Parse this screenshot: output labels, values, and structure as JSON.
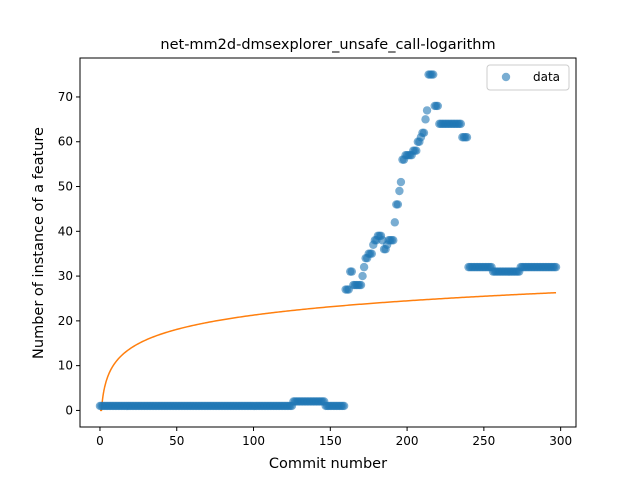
{
  "chart_data": {
    "type": "scatter",
    "title": "net-mm2d-dmsexplorer_unsafe_call-logarithm",
    "xlabel": "Commit number",
    "ylabel": "Number of instance of a feature",
    "xlim": [
      -13,
      310
    ],
    "ylim": [
      -3.7,
      78.7
    ],
    "xticks": [
      0,
      50,
      100,
      150,
      200,
      250,
      300
    ],
    "yticks": [
      0,
      10,
      20,
      30,
      40,
      50,
      60,
      70
    ],
    "grid": false,
    "legend": {
      "position": "top-right",
      "entries": [
        "data"
      ]
    },
    "colors": {
      "data": "#1f77b4",
      "fit": "#ff7f0e"
    },
    "series": [
      {
        "name": "data",
        "style": "markers",
        "segments": [
          {
            "x_start": 0,
            "x_end": 125,
            "y": 1
          },
          {
            "x_start": 126,
            "x_end": 146,
            "y": 2
          },
          {
            "x_start": 147,
            "x_end": 159,
            "y": 1
          },
          {
            "x_start": 240,
            "x_end": 255,
            "y": 32
          },
          {
            "x_start": 256,
            "x_end": 273,
            "y": 31
          },
          {
            "x_start": 274,
            "x_end": 297,
            "y": 32
          }
        ],
        "points": [
          [
            160,
            27
          ],
          [
            161,
            27
          ],
          [
            162,
            27
          ],
          [
            163,
            31
          ],
          [
            164,
            31
          ],
          [
            165,
            28
          ],
          [
            166,
            28
          ],
          [
            167,
            28
          ],
          [
            168,
            28
          ],
          [
            169,
            28
          ],
          [
            170,
            28
          ],
          [
            171,
            30
          ],
          [
            172,
            32
          ],
          [
            173,
            34
          ],
          [
            174,
            34
          ],
          [
            175,
            35
          ],
          [
            176,
            35
          ],
          [
            177,
            35
          ],
          [
            178,
            37
          ],
          [
            179,
            38
          ],
          [
            180,
            38
          ],
          [
            181,
            39
          ],
          [
            182,
            39
          ],
          [
            183,
            39
          ],
          [
            184,
            38
          ],
          [
            185,
            36
          ],
          [
            186,
            36
          ],
          [
            187,
            37
          ],
          [
            188,
            38
          ],
          [
            189,
            38
          ],
          [
            190,
            38
          ],
          [
            191,
            38
          ],
          [
            192,
            42
          ],
          [
            193,
            46
          ],
          [
            194,
            46
          ],
          [
            195,
            49
          ],
          [
            196,
            51
          ],
          [
            197,
            56
          ],
          [
            198,
            56
          ],
          [
            199,
            57
          ],
          [
            200,
            57
          ],
          [
            201,
            57
          ],
          [
            202,
            57
          ],
          [
            203,
            57
          ],
          [
            204,
            58
          ],
          [
            205,
            58
          ],
          [
            206,
            58
          ],
          [
            207,
            60
          ],
          [
            208,
            60
          ],
          [
            209,
            61
          ],
          [
            210,
            62
          ],
          [
            211,
            62
          ],
          [
            212,
            65
          ],
          [
            213,
            67
          ],
          [
            214,
            75
          ],
          [
            215,
            75
          ],
          [
            216,
            75
          ],
          [
            217,
            75
          ],
          [
            218,
            68
          ],
          [
            219,
            68
          ],
          [
            220,
            68
          ],
          [
            221,
            64
          ],
          [
            222,
            64
          ],
          [
            223,
            64
          ],
          [
            224,
            64
          ],
          [
            225,
            64
          ],
          [
            226,
            64
          ],
          [
            227,
            64
          ],
          [
            228,
            64
          ],
          [
            229,
            64
          ],
          [
            230,
            64
          ],
          [
            231,
            64
          ],
          [
            232,
            64
          ],
          [
            233,
            64
          ],
          [
            234,
            64
          ],
          [
            235,
            64
          ],
          [
            236,
            61
          ],
          [
            237,
            61
          ],
          [
            238,
            61
          ],
          [
            239,
            61
          ]
        ]
      },
      {
        "name": "",
        "style": "line",
        "fit": {
          "form": "a*ln(x)+b",
          "a": 4.6,
          "b": 0.1,
          "x_start": 0,
          "x_end": 297
        }
      }
    ]
  }
}
